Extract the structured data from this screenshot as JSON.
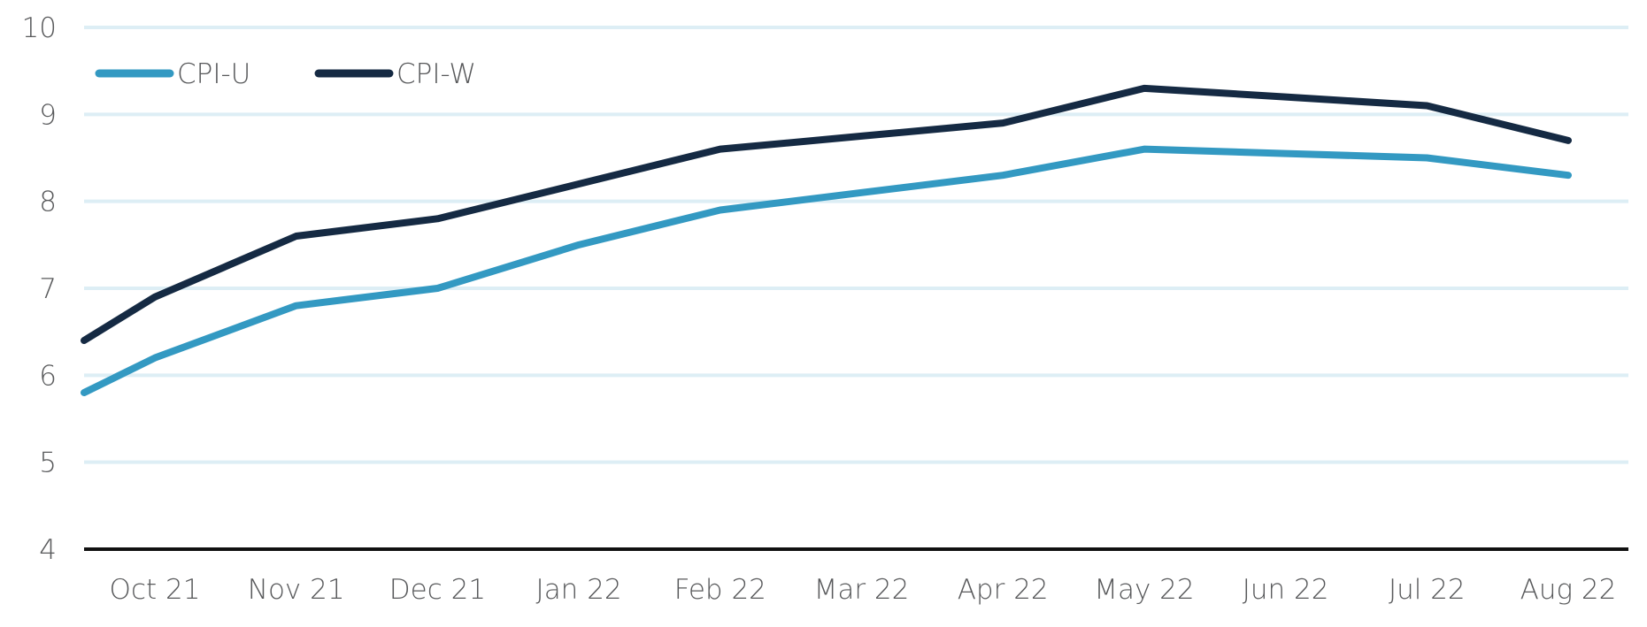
{
  "chart_data": {
    "type": "line",
    "categories": [
      "Oct 21",
      "Nov 21",
      "Dec 21",
      "Jan 22",
      "Feb 22",
      "Mar 22",
      "Apr 22",
      "May 22",
      "Jun 22",
      "Jul 22",
      "Aug 22"
    ],
    "ylim": [
      4,
      10
    ],
    "yticks": [
      4,
      5,
      6,
      7,
      8,
      9,
      10
    ],
    "grid": true,
    "legend": "top-left",
    "series": [
      {
        "name": "CPI-U",
        "color": "#3399c2",
        "start_value": 5.8,
        "values": [
          6.2,
          6.8,
          7.0,
          7.5,
          7.9,
          8.1,
          8.3,
          8.6,
          8.55,
          8.5,
          8.3
        ]
      },
      {
        "name": "CPI-W",
        "color": "#152a43",
        "start_value": 6.4,
        "values": [
          6.9,
          7.6,
          7.8,
          8.2,
          8.6,
          8.75,
          8.9,
          9.3,
          9.2,
          9.1,
          8.7
        ]
      }
    ],
    "colors": {
      "grid": "#ddeef5",
      "baseline": "#111111",
      "text": "#58595b"
    }
  }
}
